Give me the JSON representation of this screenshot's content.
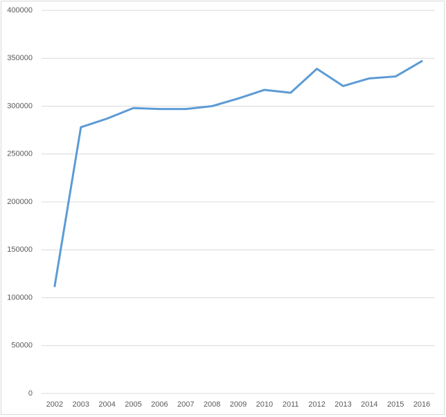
{
  "chart_data": {
    "type": "line",
    "categories": [
      "2002",
      "2003",
      "2004",
      "2005",
      "2006",
      "2007",
      "2008",
      "2009",
      "2010",
      "2011",
      "2012",
      "2013",
      "2014",
      "2015",
      "2016"
    ],
    "series": [
      {
        "color": "#5b9bd5",
        "values": [
          112000,
          278000,
          287000,
          298000,
          297000,
          297000,
          300000,
          308000,
          317000,
          314000,
          339000,
          321000,
          329000,
          331000,
          347000
        ]
      }
    ],
    "ylim": [
      0,
      400000
    ],
    "yticks": [
      0,
      50000,
      100000,
      150000,
      200000,
      250000,
      300000,
      350000,
      400000
    ],
    "grid": true
  }
}
